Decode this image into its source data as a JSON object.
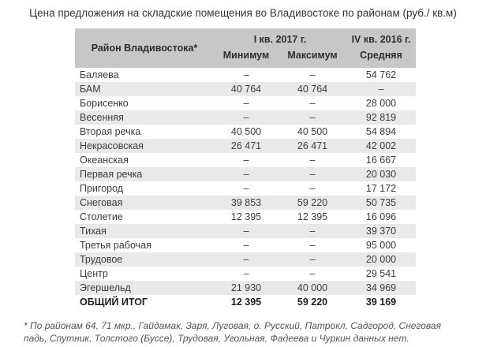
{
  "title": "Цена предложения на складские помещения во Владивостоке по районам (руб./ кв.м)",
  "table": {
    "header": {
      "district": "Район Владивостока*",
      "q1_2017": "I кв. 2017 г.",
      "q4_2016": "IV кв. 2016 г.",
      "min": "Минимум",
      "max": "Максимум",
      "avg": "Средняя"
    },
    "rows": [
      {
        "district": "Баляева",
        "min": "–",
        "max": "–",
        "avg": "54 762"
      },
      {
        "district": "БАМ",
        "min": "40 764",
        "max": "40 764",
        "avg": "–"
      },
      {
        "district": "Борисенко",
        "min": "–",
        "max": "–",
        "avg": "28 000"
      },
      {
        "district": "Весенняя",
        "min": "–",
        "max": "–",
        "avg": "92 819"
      },
      {
        "district": "Вторая речка",
        "min": "40 500",
        "max": "40 500",
        "avg": "54 894"
      },
      {
        "district": "Некрасовская",
        "min": "26 471",
        "max": "26 471",
        "avg": "42 002"
      },
      {
        "district": "Океанская",
        "min": "–",
        "max": "–",
        "avg": "16 667"
      },
      {
        "district": "Первая речка",
        "min": "–",
        "max": "–",
        "avg": "20 030"
      },
      {
        "district": "Пригород",
        "min": "–",
        "max": "–",
        "avg": "17 172"
      },
      {
        "district": "Снеговая",
        "min": "39 853",
        "max": "59 220",
        "avg": "50 735"
      },
      {
        "district": "Столетие",
        "min": "12 395",
        "max": "12 395",
        "avg": "16 096"
      },
      {
        "district": "Тихая",
        "min": "–",
        "max": "–",
        "avg": "39 370"
      },
      {
        "district": "Третья рабочая",
        "min": "–",
        "max": "–",
        "avg": "95 000"
      },
      {
        "district": "Трудовое",
        "min": "–",
        "max": "–",
        "avg": "20 000"
      },
      {
        "district": "Центр",
        "min": "–",
        "max": "–",
        "avg": "29 541"
      },
      {
        "district": "Эгершельд",
        "min": "21 930",
        "max": "40 000",
        "avg": "34 969"
      }
    ],
    "total": {
      "district": "ОБЩИЙ ИТОГ",
      "min": "12 395",
      "max": "59 220",
      "avg": "39 169"
    }
  },
  "footnote": "* По районам 64, 71 мкр., Гайдамак, Заря, Луговая, о. Русский, Патрокл, Садгород, Снеговая падь, Спутник, Толстого (Буссе), Трудовая, Угольная, Фадеева и Чуркин данных нет.",
  "colors": {
    "header_bg": "#c7c7c7",
    "stripe_bg": "#e9e9e9",
    "row_text": "#3c3c3c",
    "footnote_text": "#555555"
  },
  "chart_data": {
    "type": "table",
    "title": "Цена предложения на складские помещения во Владивостоке по районам (руб./ кв.м)",
    "column_groups": [
      "Район Владивостока*",
      "I кв. 2017 г.",
      "IV кв. 2016 г."
    ],
    "columns": [
      "Район Владивостока*",
      "I кв. 2017 г. — Минимум",
      "I кв. 2017 г. — Максимум",
      "IV кв. 2016 г. — Средняя"
    ],
    "rows": [
      {
        "district": "Баляева",
        "min_q1_2017": null,
        "max_q1_2017": null,
        "avg_q4_2016": 54762
      },
      {
        "district": "БАМ",
        "min_q1_2017": 40764,
        "max_q1_2017": 40764,
        "avg_q4_2016": null
      },
      {
        "district": "Борисенко",
        "min_q1_2017": null,
        "max_q1_2017": null,
        "avg_q4_2016": 28000
      },
      {
        "district": "Весенняя",
        "min_q1_2017": null,
        "max_q1_2017": null,
        "avg_q4_2016": 92819
      },
      {
        "district": "Вторая речка",
        "min_q1_2017": 40500,
        "max_q1_2017": 40500,
        "avg_q4_2016": 54894
      },
      {
        "district": "Некрасовская",
        "min_q1_2017": 26471,
        "max_q1_2017": 26471,
        "avg_q4_2016": 42002
      },
      {
        "district": "Океанская",
        "min_q1_2017": null,
        "max_q1_2017": null,
        "avg_q4_2016": 16667
      },
      {
        "district": "Первая речка",
        "min_q1_2017": null,
        "max_q1_2017": null,
        "avg_q4_2016": 20030
      },
      {
        "district": "Пригород",
        "min_q1_2017": null,
        "max_q1_2017": null,
        "avg_q4_2016": 17172
      },
      {
        "district": "Снеговая",
        "min_q1_2017": 39853,
        "max_q1_2017": 59220,
        "avg_q4_2016": 50735
      },
      {
        "district": "Столетие",
        "min_q1_2017": 12395,
        "max_q1_2017": 12395,
        "avg_q4_2016": 16096
      },
      {
        "district": "Тихая",
        "min_q1_2017": null,
        "max_q1_2017": null,
        "avg_q4_2016": 39370
      },
      {
        "district": "Третья рабочая",
        "min_q1_2017": null,
        "max_q1_2017": null,
        "avg_q4_2016": 95000
      },
      {
        "district": "Трудовое",
        "min_q1_2017": null,
        "max_q1_2017": null,
        "avg_q4_2016": 20000
      },
      {
        "district": "Центр",
        "min_q1_2017": null,
        "max_q1_2017": null,
        "avg_q4_2016": 29541
      },
      {
        "district": "Эгершельд",
        "min_q1_2017": 21930,
        "max_q1_2017": 40000,
        "avg_q4_2016": 34969
      }
    ],
    "total_row": {
      "district": "ОБЩИЙ ИТОГ",
      "min_q1_2017": 12395,
      "max_q1_2017": 59220,
      "avg_q4_2016": 39169
    },
    "footnote": "* По районам 64, 71 мкр., Гайдамак, Заря, Луговая, о. Русский, Патрокл, Садгород, Снеговая падь, Спутник, Толстого (Буссе), Трудовая, Угольная, Фадеева и Чуркин данных нет."
  }
}
